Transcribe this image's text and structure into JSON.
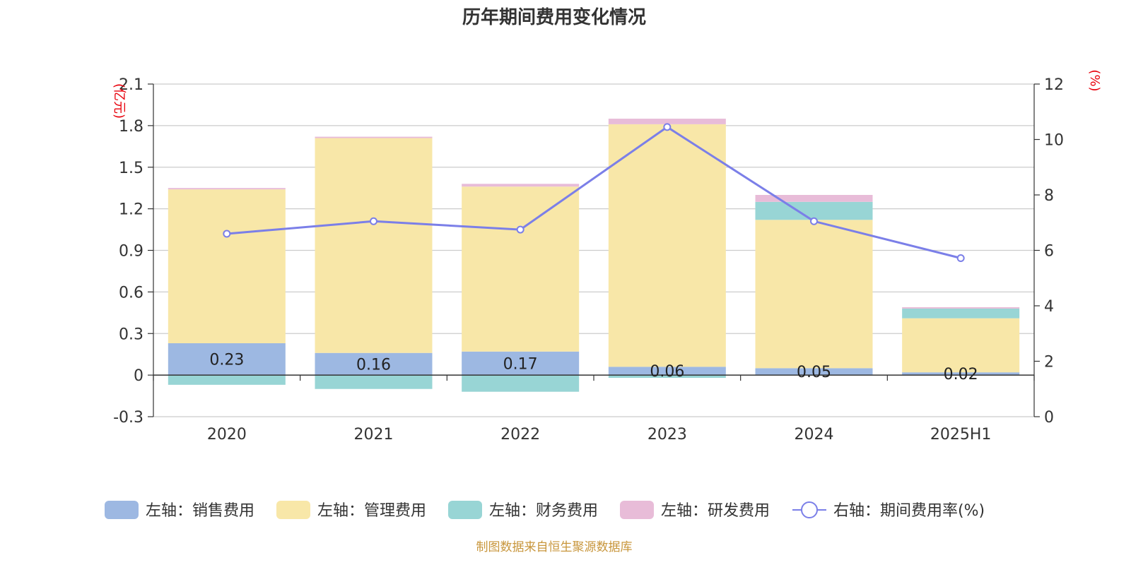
{
  "chart_data": {
    "type": "bar",
    "title": "历年期间费用变化情况",
    "categories": [
      "2020",
      "2021",
      "2022",
      "2023",
      "2024",
      "2025H1"
    ],
    "left_axis": {
      "unit": "(亿元)",
      "ylim": [
        -0.3,
        2.1
      ],
      "ticks": [
        "2.1",
        "1.8",
        "1.5",
        "1.2",
        "0.9",
        "0.6",
        "0.3",
        "0",
        "-0.3"
      ]
    },
    "right_axis": {
      "unit": "(%)",
      "ylim": [
        0,
        12
      ],
      "ticks": [
        "12",
        "10",
        "8",
        "6",
        "4",
        "2",
        "0"
      ]
    },
    "stacked": true,
    "series": [
      {
        "name": "左轴：销售费用",
        "axis": "left",
        "color": "#9db8e2",
        "values": [
          0.23,
          0.16,
          0.17,
          0.06,
          0.05,
          0.02
        ],
        "labels": [
          "0.23",
          "0.16",
          "0.17",
          "0.06",
          "0.05",
          "0.02"
        ]
      },
      {
        "name": "左轴：管理费用",
        "axis": "left",
        "color": "#f8e7a8",
        "values": [
          1.11,
          1.55,
          1.19,
          1.75,
          1.07,
          0.39
        ]
      },
      {
        "name": "左轴：财务费用",
        "axis": "left",
        "color": "#98d5d5",
        "values": [
          -0.07,
          -0.1,
          -0.12,
          -0.02,
          0.13,
          0.07
        ]
      },
      {
        "name": "左轴：研发费用",
        "axis": "left",
        "color": "#e8bcd8",
        "values": [
          0.01,
          0.01,
          0.02,
          0.04,
          0.05,
          0.01
        ]
      },
      {
        "name": "右轴：期间费用率(%)",
        "axis": "right",
        "type": "line",
        "color": "#7b7fe8",
        "values": [
          6.6,
          7.05,
          6.75,
          10.45,
          7.05,
          5.72
        ]
      }
    ],
    "grid": true,
    "legend_position": "bottom"
  },
  "footer": {
    "source": "制图数据来自恒生聚源数据库"
  }
}
